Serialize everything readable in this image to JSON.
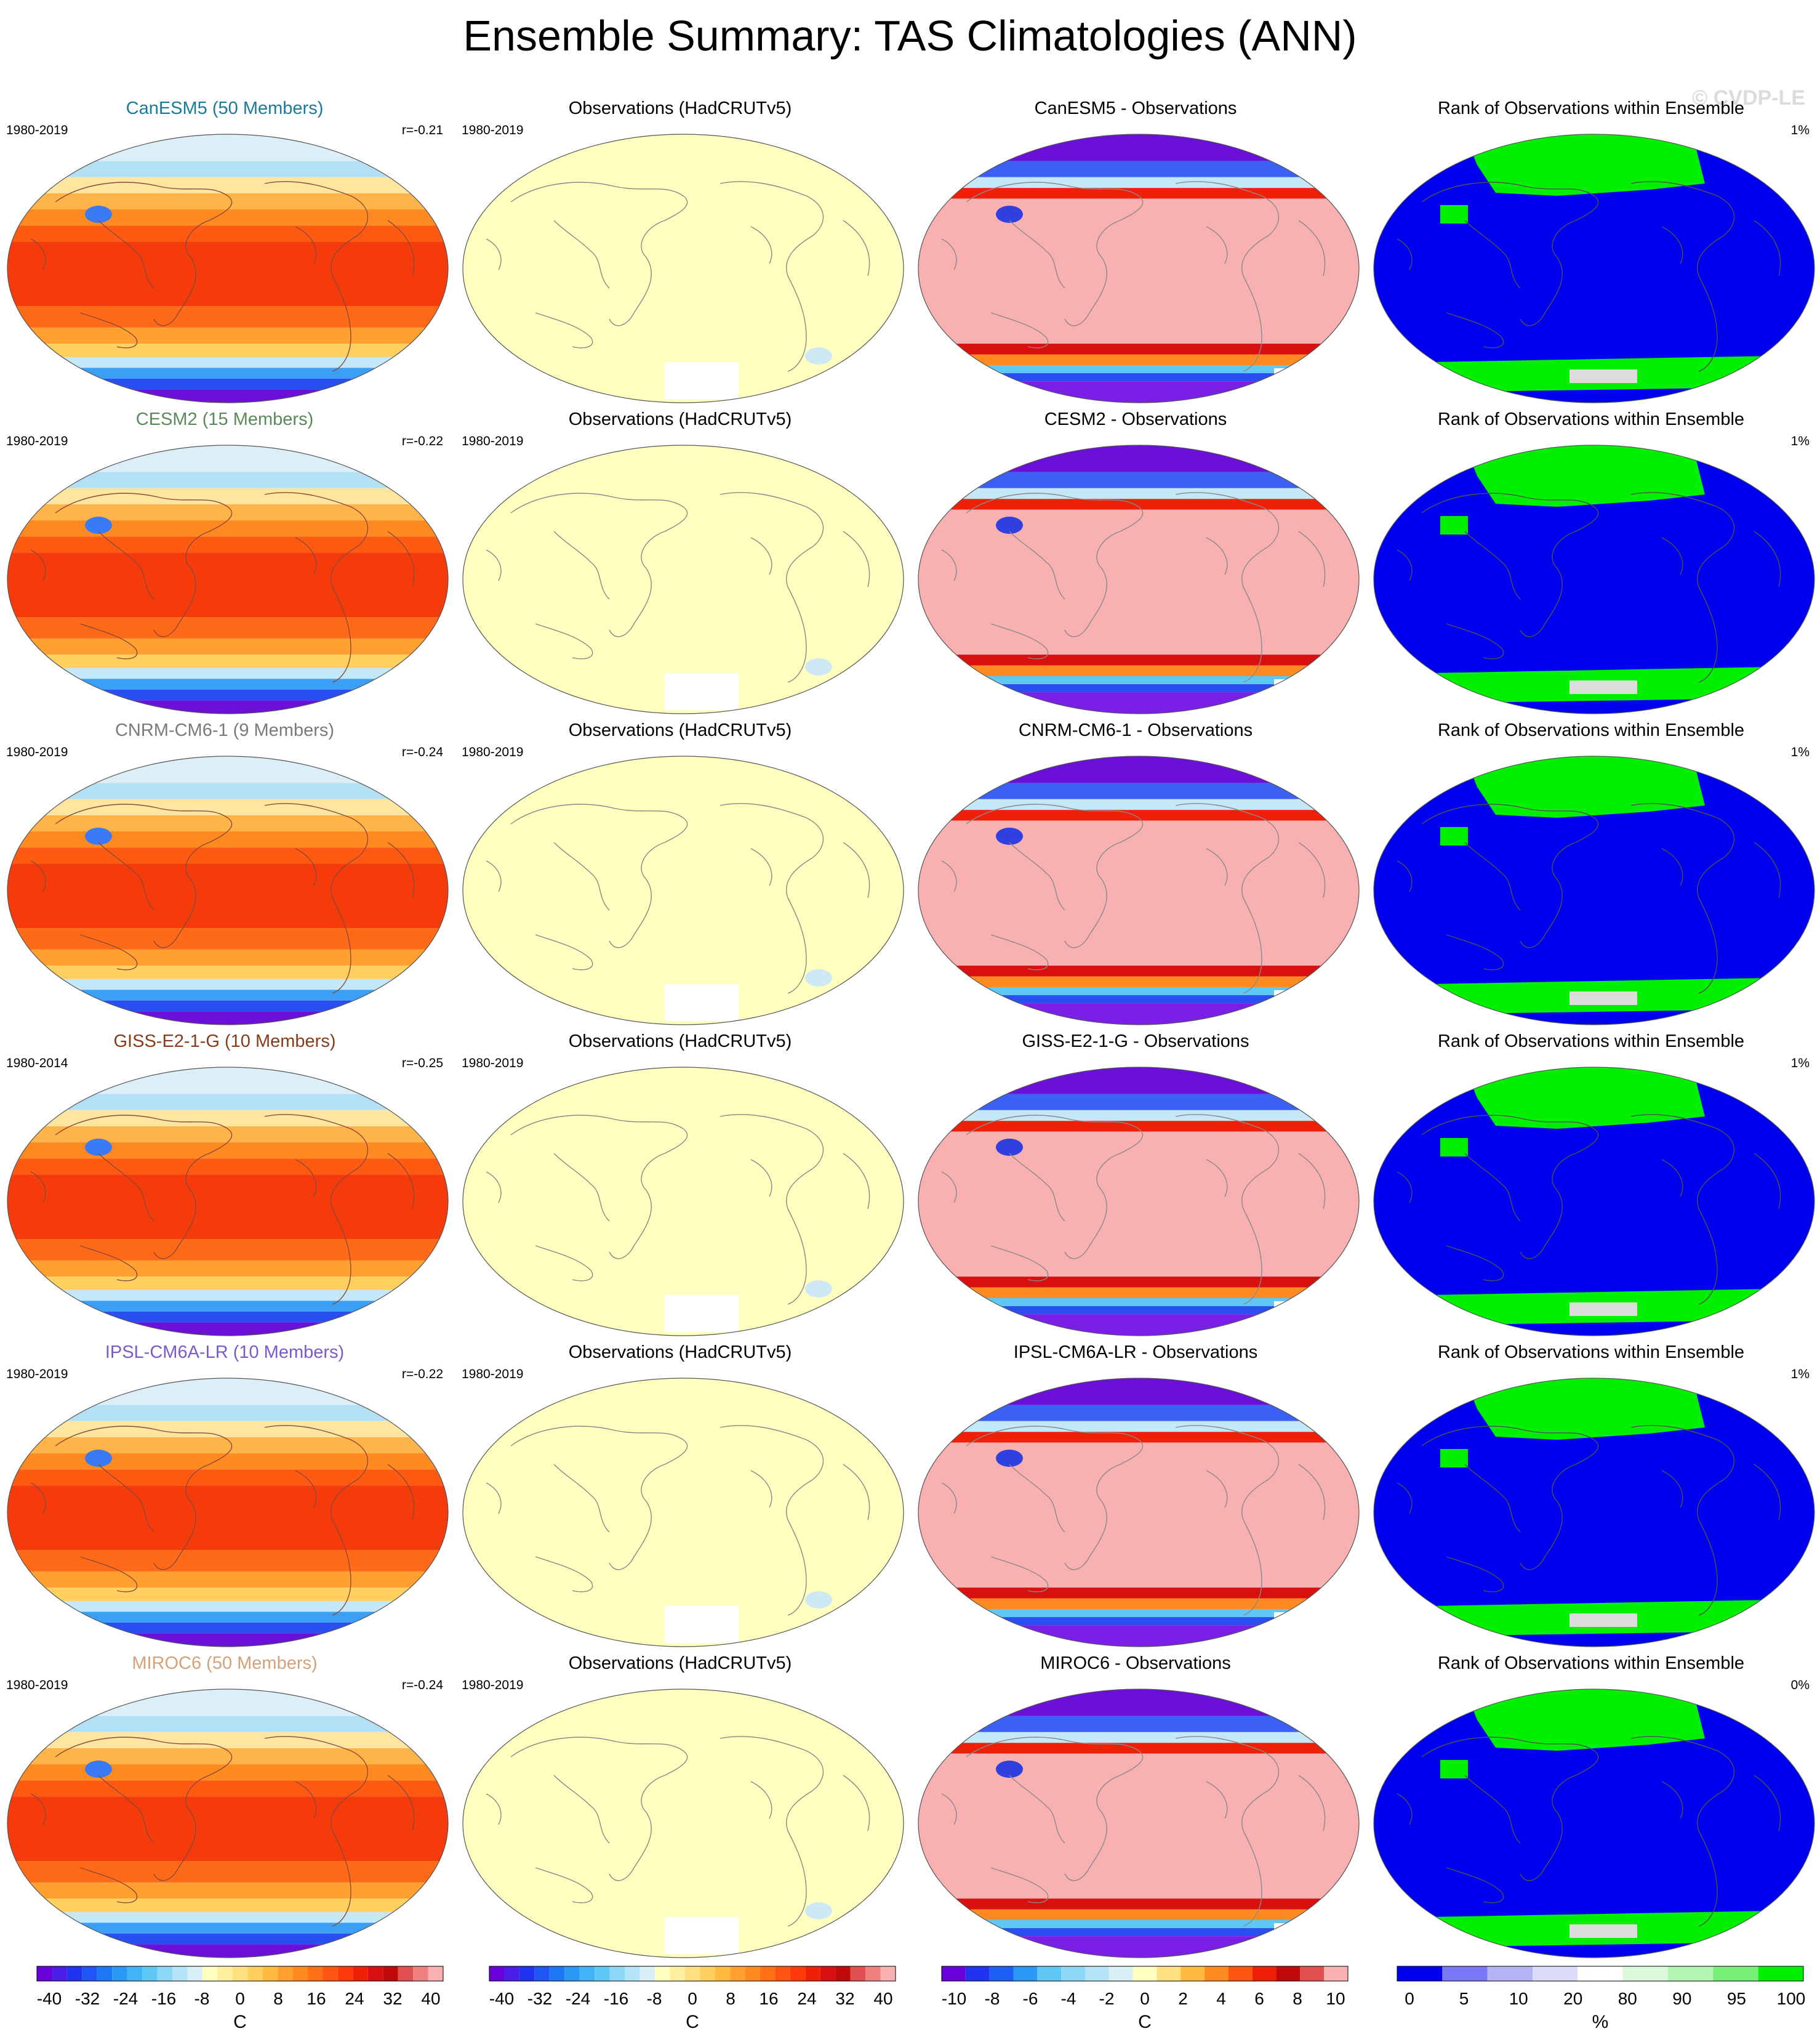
{
  "title": "Ensemble Summary: TAS Climatologies (ANN)",
  "watermark": "© CVDP-LE",
  "rows": [
    {
      "model_title": "CanESM5 (50 Members)",
      "model_color": "#1a7a9a",
      "model_period": "1980-2019",
      "pattern_corr": "r=-0.21",
      "obs_title": "Observations (HadCRUTv5)",
      "obs_period": "1980-2019",
      "diff_title": "CanESM5 - Observations",
      "rank_title": "Rank of Observations within Ensemble",
      "rank_pct": "1%"
    },
    {
      "model_title": "CESM2 (15 Members)",
      "model_color": "#5a8a5a",
      "model_period": "1980-2019",
      "pattern_corr": "r=-0.22",
      "obs_title": "Observations (HadCRUTv5)",
      "obs_period": "1980-2019",
      "diff_title": "CESM2 - Observations",
      "rank_title": "Rank of Observations within Ensemble",
      "rank_pct": "1%"
    },
    {
      "model_title": "CNRM-CM6-1 (9 Members)",
      "model_color": "#7a7a7a",
      "model_period": "1980-2019",
      "pattern_corr": "r=-0.24",
      "obs_title": "Observations (HadCRUTv5)",
      "obs_period": "1980-2019",
      "diff_title": "CNRM-CM6-1 - Observations",
      "rank_title": "Rank of Observations within Ensemble",
      "rank_pct": "1%"
    },
    {
      "model_title": "GISS-E2-1-G (10 Members)",
      "model_color": "#8b3a1a",
      "model_period": "1980-2014",
      "pattern_corr": "r=-0.25",
      "obs_title": "Observations (HadCRUTv5)",
      "obs_period": "1980-2019",
      "diff_title": "GISS-E2-1-G - Observations",
      "rank_title": "Rank of Observations within Ensemble",
      "rank_pct": "1%"
    },
    {
      "model_title": "IPSL-CM6A-LR (10 Members)",
      "model_color": "#7a5acc",
      "model_period": "1980-2019",
      "pattern_corr": "r=-0.22",
      "obs_title": "Observations (HadCRUTv5)",
      "obs_period": "1980-2019",
      "diff_title": "IPSL-CM6A-LR - Observations",
      "rank_title": "Rank of Observations within Ensemble",
      "rank_pct": "1%"
    },
    {
      "model_title": "MIROC6 (50 Members)",
      "model_color": "#d4a17a",
      "model_period": "1980-2019",
      "pattern_corr": "r=-0.24",
      "obs_title": "Observations (HadCRUTv5)",
      "obs_period": "1980-2019",
      "diff_title": "MIROC6 - Observations",
      "rank_title": "Rank of Observations within Ensemble",
      "rank_pct": "0%"
    }
  ],
  "colorbars": [
    {
      "unit": "C",
      "labels": [
        "-40",
        "-32",
        "-24",
        "-16",
        "-8",
        "0",
        "8",
        "16",
        "24",
        "32",
        "40"
      ],
      "colors": [
        "#6a00d9",
        "#4a1ee6",
        "#2233f0",
        "#1f55f5",
        "#1e78f5",
        "#2a98f5",
        "#40b4f5",
        "#60c8f5",
        "#8cd8f5",
        "#b4e4f5",
        "#d8f0f5",
        "#ffffc0",
        "#fff0a0",
        "#ffe080",
        "#ffd060",
        "#ffbb40",
        "#ffa030",
        "#ff8a20",
        "#ff7018",
        "#ff5510",
        "#ff3a0a",
        "#f02008",
        "#d81010",
        "#c00a0a",
        "#e05050",
        "#f08080",
        "#f8b0b0"
      ]
    },
    {
      "unit": "C",
      "labels": [
        "-40",
        "-32",
        "-24",
        "-16",
        "-8",
        "0",
        "8",
        "16",
        "24",
        "32",
        "40"
      ],
      "colors": [
        "#6a00d9",
        "#4a1ee6",
        "#2233f0",
        "#1f55f5",
        "#1e78f5",
        "#2a98f5",
        "#40b4f5",
        "#60c8f5",
        "#8cd8f5",
        "#b4e4f5",
        "#d8f0f5",
        "#ffffc0",
        "#fff0a0",
        "#ffe080",
        "#ffd060",
        "#ffbb40",
        "#ffa030",
        "#ff8a20",
        "#ff7018",
        "#ff5510",
        "#ff3a0a",
        "#f02008",
        "#d81010",
        "#c00a0a",
        "#e05050",
        "#f08080",
        "#f8b0b0"
      ]
    },
    {
      "unit": "C",
      "labels": [
        "-10",
        "-8",
        "-6",
        "-4",
        "-2",
        "0",
        "2",
        "4",
        "6",
        "8",
        "10"
      ],
      "colors": [
        "#6a00d9",
        "#2233f0",
        "#1e60f5",
        "#2a98f5",
        "#60c8f5",
        "#8cd8f5",
        "#b4e4f5",
        "#d8f0f5",
        "#ffffc0",
        "#ffe080",
        "#ffbb40",
        "#ff8a20",
        "#ff5510",
        "#f02008",
        "#c00a0a",
        "#e05050",
        "#f8b0b0"
      ]
    },
    {
      "unit": "%",
      "labels": [
        "0",
        "5",
        "10",
        "20",
        "80",
        "90",
        "95",
        "100"
      ],
      "colors": [
        "#0000f0",
        "#7878f5",
        "#b4b4f5",
        "#dcdcf8",
        "#ffffff",
        "#dcf8dc",
        "#b4f5b4",
        "#78f078",
        "#00f000"
      ]
    }
  ]
}
